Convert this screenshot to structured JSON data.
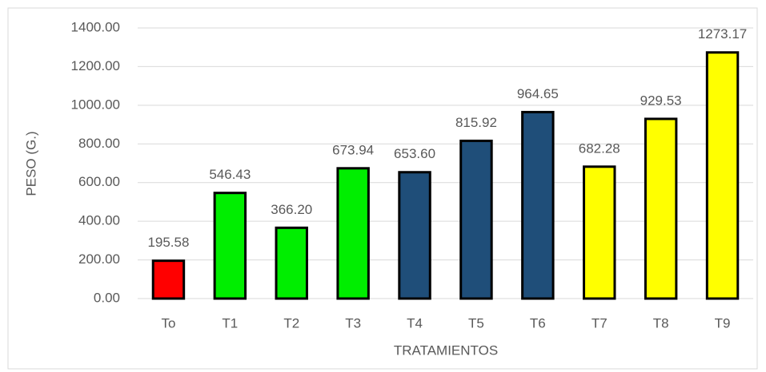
{
  "chart_data": {
    "type": "bar",
    "categories": [
      "To",
      "T1",
      "T2",
      "T3",
      "T4",
      "T5",
      "T6",
      "T7",
      "T8",
      "T9"
    ],
    "values": [
      195.58,
      546.43,
      366.2,
      673.94,
      653.6,
      815.92,
      964.65,
      682.28,
      929.53,
      1273.17
    ],
    "value_labels": [
      "195.58",
      "546.43",
      "366.20",
      "673.94",
      "653.60",
      "815.92",
      "964.65",
      "682.28",
      "929.53",
      "1273.17"
    ],
    "colors": [
      "#ff0000",
      "#00ee00",
      "#00ee00",
      "#00ee00",
      "#1f4e79",
      "#1f4e79",
      "#1f4e79",
      "#ffff00",
      "#ffff00",
      "#ffff00"
    ],
    "xlabel": "TRATAMIENTOS",
    "ylabel": "PESO (G.)",
    "ylim": [
      0,
      1400
    ],
    "yticks": [
      {
        "value": 0,
        "label": "0.00"
      },
      {
        "value": 200,
        "label": "200.00"
      },
      {
        "value": 400,
        "label": "400.00"
      },
      {
        "value": 600,
        "label": "600.00"
      },
      {
        "value": 800,
        "label": "800.00"
      },
      {
        "value": 1000,
        "label": "1000.00"
      },
      {
        "value": 1200,
        "label": "1200.00"
      },
      {
        "value": 1400,
        "label": "1400.00"
      }
    ],
    "grid": true
  }
}
